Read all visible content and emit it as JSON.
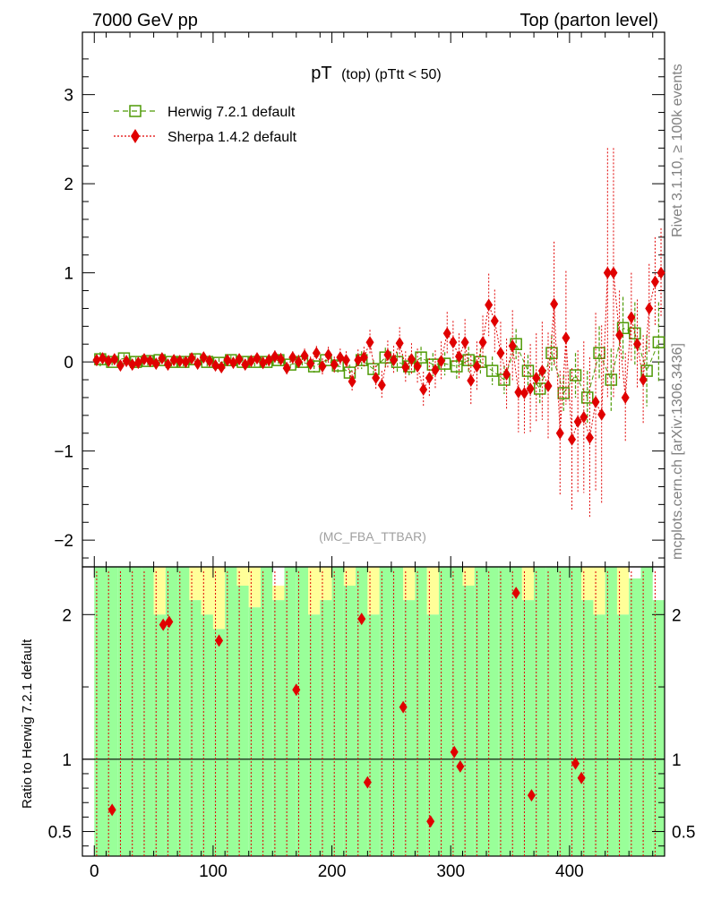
{
  "header": {
    "left": "7000 GeV pp",
    "right": "Top (parton level)"
  },
  "side": {
    "rivet": "Rivet 3.1.10, ≥ 100k events",
    "mcplots": "mcplots.cern.ch [arXiv:1306.3436]"
  },
  "watermark": "(MC_FBA_TTBAR)",
  "colors": {
    "herwig": "#4e9a06",
    "sherpa": "#e00000",
    "band_green": "#99ff99",
    "band_yellow": "#ffff99"
  },
  "chart_data": {
    "type": "scatter",
    "title_main": "pT",
    "title_sub": "(top)  (pTtt < 50)",
    "xlabel": "",
    "ylabel": "",
    "ratio_ylabel": "Ratio to Herwig 7.2.1 default",
    "xlim": [
      -10,
      480
    ],
    "ylim": [
      -2.3,
      3.7
    ],
    "ratio_ylim": [
      0.33,
      2.33
    ],
    "x_ticks": [
      "0",
      "100",
      "200",
      "300",
      "400"
    ],
    "y_ticks": [
      "−2",
      "−1",
      "0",
      "1",
      "2",
      "3"
    ],
    "ratio_y_ticks": [
      "0.5",
      "1",
      "2"
    ],
    "legend": [
      "Herwig 7.2.1 default",
      "Sherpa 1.4.2 default"
    ],
    "series": [
      {
        "name": "Herwig 7.2.1 default",
        "x": [
          5,
          15,
          25,
          35,
          45,
          55,
          65,
          75,
          85,
          95,
          105,
          115,
          125,
          135,
          145,
          155,
          165,
          175,
          185,
          195,
          205,
          215,
          225,
          235,
          245,
          255,
          265,
          275,
          285,
          295,
          305,
          315,
          325,
          335,
          345,
          355,
          365,
          375,
          385,
          395,
          405,
          415,
          425,
          435,
          445,
          455,
          465,
          475
        ],
        "y": [
          0.03,
          0,
          0.04,
          0,
          0.01,
          0.02,
          0,
          0,
          0.03,
          0,
          -0.01,
          0.02,
          0,
          0,
          0,
          0.02,
          -0.03,
          0,
          -0.05,
          0.02,
          -0.04,
          -0.12,
          0.02,
          -0.08,
          0.05,
          0,
          -0.05,
          0.05,
          -0.03,
          -0.02,
          -0.05,
          0.02,
          0,
          -0.1,
          -0.2,
          0.2,
          -0.1,
          -0.3,
          0.1,
          -0.35,
          -0.15,
          -0.4,
          0.1,
          -0.2,
          0.38,
          0.32,
          -0.1,
          0.22
        ],
        "err": [
          0.08,
          0.06,
          0.05,
          0.05,
          0.05,
          0.05,
          0.05,
          0.05,
          0.05,
          0.05,
          0.05,
          0.05,
          0.05,
          0.05,
          0.06,
          0.06,
          0.06,
          0.06,
          0.07,
          0.07,
          0.08,
          0.09,
          0.1,
          0.1,
          0.11,
          0.11,
          0.12,
          0.12,
          0.13,
          0.13,
          0.14,
          0.15,
          0.15,
          0.16,
          0.16,
          0.17,
          0.18,
          0.18,
          0.2,
          0.2,
          0.25,
          0.3,
          0.3,
          0.35,
          0.35,
          0.35,
          0.4,
          0.45
        ]
      },
      {
        "name": "Sherpa 1.4.2 default",
        "x": [
          2,
          7,
          12,
          17,
          22,
          27,
          32,
          37,
          42,
          47,
          52,
          57,
          62,
          67,
          72,
          77,
          82,
          87,
          92,
          97,
          102,
          107,
          112,
          117,
          122,
          127,
          132,
          137,
          142,
          147,
          152,
          157,
          162,
          167,
          172,
          177,
          182,
          187,
          192,
          197,
          202,
          207,
          212,
          217,
          222,
          227,
          232,
          237,
          242,
          247,
          252,
          257,
          262,
          267,
          272,
          277,
          282,
          287,
          292,
          297,
          302,
          307,
          312,
          317,
          322,
          327,
          332,
          337,
          342,
          347,
          352,
          357,
          362,
          367,
          372,
          377,
          382,
          387,
          392,
          397,
          402,
          407,
          412,
          417,
          422,
          427,
          432,
          437,
          442,
          447,
          452,
          457,
          462,
          467,
          472,
          477
        ],
        "y": [
          0.02,
          0.04,
          0.01,
          0.03,
          -0.04,
          0.01,
          -0.03,
          -0.01,
          0.03,
          0.01,
          -0.02,
          0.04,
          -0.03,
          0.02,
          0.01,
          0,
          0.04,
          -0.02,
          0.05,
          0.01,
          -0.04,
          -0.06,
          0.02,
          -0.01,
          0.03,
          -0.03,
          0.01,
          0.04,
          -0.01,
          0.02,
          0.06,
          0.03,
          -0.07,
          0.05,
          0,
          0.07,
          -0.02,
          0.1,
          -0.05,
          0.08,
          -0.03,
          0.05,
          0.02,
          -0.22,
          0.02,
          0.05,
          0.22,
          -0.18,
          -0.26,
          0.08,
          0.02,
          0.21,
          -0.06,
          0.03,
          -0.05,
          -0.31,
          -0.18,
          -0.09,
          0.01,
          0.32,
          0.22,
          0.06,
          0.22,
          -0.21,
          -0.05,
          0.22,
          0.64,
          0.46,
          0.1,
          -0.14,
          0.18,
          -0.34,
          -0.35,
          -0.3,
          -0.18,
          -0.1,
          -0.27,
          0.65,
          -0.8,
          0.27,
          -0.87,
          -0.67,
          -0.62,
          -0.85,
          -0.45,
          -0.59,
          1.0,
          1.0,
          0.3,
          -0.4,
          0.5,
          0.2,
          -0.2,
          0.6,
          0.9,
          1.0
        ],
        "err": [
          0.05,
          0.05,
          0.05,
          0.05,
          0.05,
          0.05,
          0.05,
          0.05,
          0.05,
          0.05,
          0.05,
          0.05,
          0.05,
          0.05,
          0.05,
          0.05,
          0.05,
          0.05,
          0.05,
          0.05,
          0.06,
          0.06,
          0.06,
          0.06,
          0.06,
          0.06,
          0.06,
          0.06,
          0.07,
          0.07,
          0.07,
          0.07,
          0.07,
          0.07,
          0.08,
          0.08,
          0.08,
          0.08,
          0.09,
          0.09,
          0.09,
          0.1,
          0.1,
          0.12,
          0.12,
          0.12,
          0.14,
          0.14,
          0.16,
          0.16,
          0.16,
          0.18,
          0.18,
          0.18,
          0.2,
          0.2,
          0.22,
          0.22,
          0.22,
          0.24,
          0.24,
          0.26,
          0.26,
          0.28,
          0.28,
          0.3,
          0.35,
          0.35,
          0.35,
          0.4,
          0.4,
          0.45,
          0.45,
          0.5,
          0.5,
          0.55,
          0.6,
          0.7,
          0.7,
          0.75,
          0.8,
          0.8,
          0.85,
          0.9,
          1.0,
          1.0,
          1.4,
          1.4,
          0.5,
          0.5,
          0.5,
          0.5,
          0.5,
          0.5,
          0.5,
          0.5
        ]
      }
    ],
    "ratio_points": {
      "x": [
        15,
        58,
        63,
        105,
        170,
        225,
        230,
        260,
        283,
        303,
        308,
        355,
        368,
        405,
        410
      ],
      "y": [
        0.65,
        1.93,
        1.95,
        1.82,
        1.48,
        1.97,
        0.84,
        1.36,
        0.57,
        1.05,
        0.95,
        2.15,
        0.75,
        0.97,
        0.87
      ]
    },
    "ratio_band_top": [
      2.33,
      2.33,
      2.33,
      2.33,
      2.33,
      2.33,
      2.33,
      2.33,
      2.33,
      2.33,
      2.33,
      2.33,
      2.33,
      2.33,
      2.33,
      2.2,
      2.33,
      2.33,
      2.33,
      2.33,
      2.33,
      2.33,
      2.33,
      2.33,
      2.33,
      2.33,
      2.33,
      2.33,
      2.33,
      2.33,
      2.33,
      2.33,
      2.33,
      2.33,
      2.33,
      2.33,
      2.33,
      2.33,
      2.33,
      2.33,
      2.33,
      2.33,
      2.33,
      2.33,
      2.33,
      2.25,
      2.33,
      2.1
    ],
    "ratio_band_green_top": [
      2.33,
      2.33,
      2.33,
      2.33,
      2.33,
      2.0,
      2.33,
      2.33,
      2.1,
      2.0,
      1.9,
      2.33,
      2.2,
      2.05,
      2.33,
      2.1,
      2.33,
      2.33,
      2.0,
      2.1,
      2.33,
      2.2,
      2.33,
      2.0,
      2.33,
      2.33,
      2.1,
      2.33,
      2.0,
      2.33,
      2.33,
      2.2,
      2.33,
      2.33,
      2.33,
      2.33,
      2.1,
      2.33,
      2.33,
      2.33,
      2.33,
      2.1,
      2.0,
      2.33,
      2.0,
      2.25,
      2.33,
      2.1
    ]
  }
}
